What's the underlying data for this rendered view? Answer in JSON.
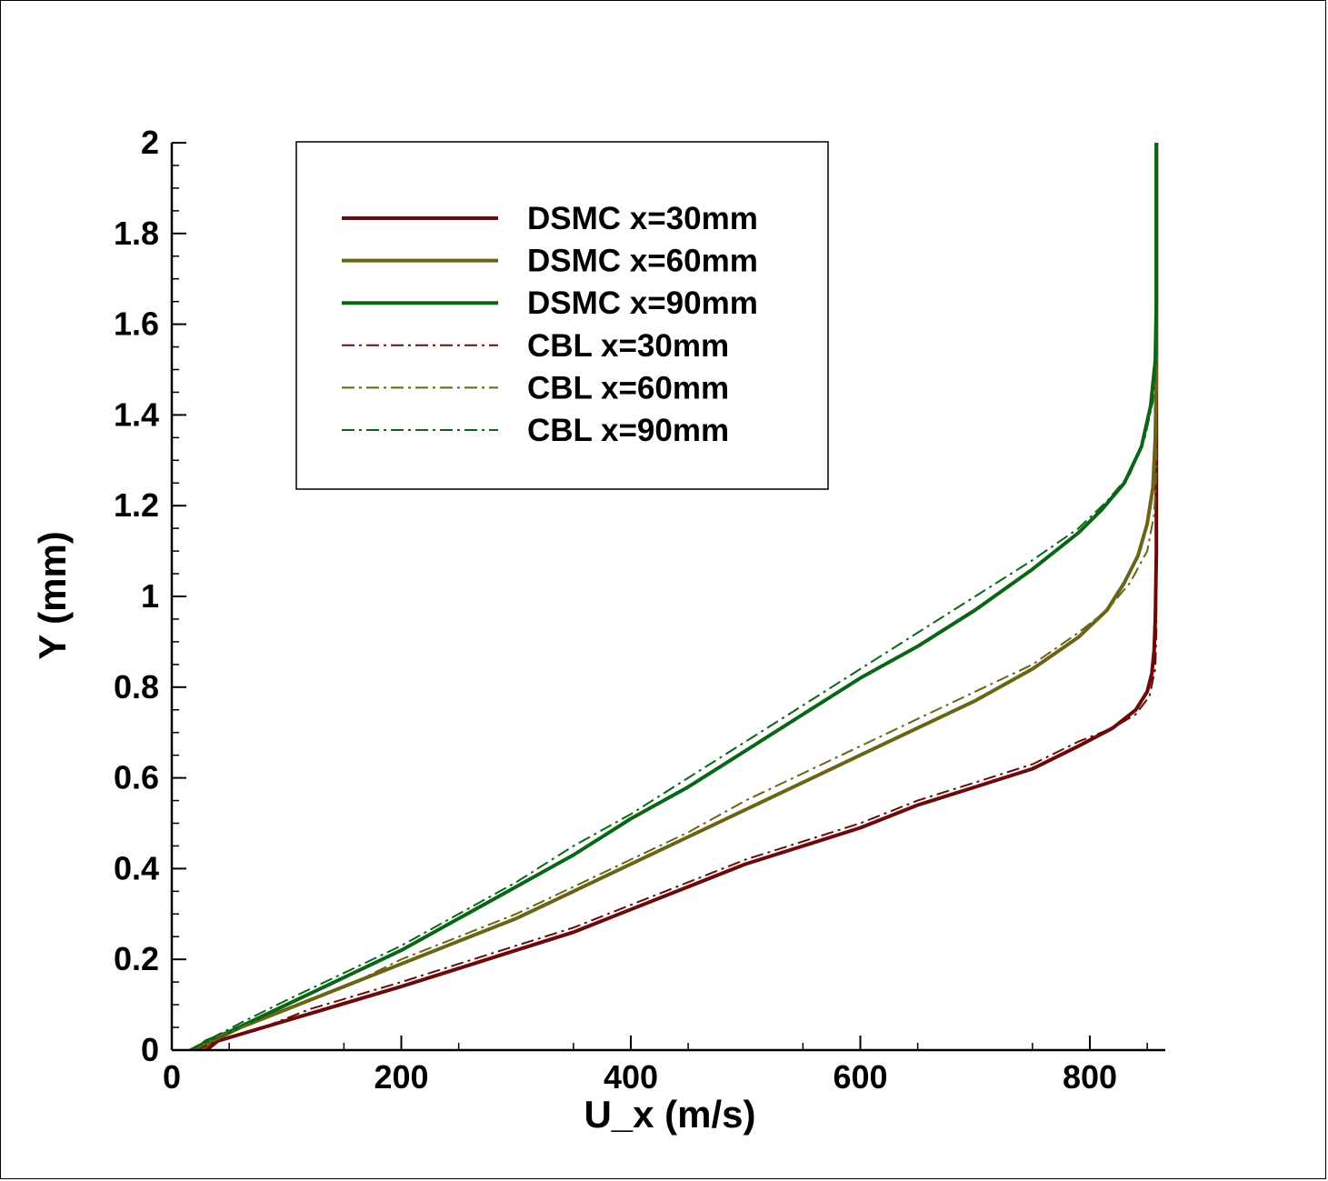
{
  "chart_data": {
    "type": "line",
    "xlabel": "U_x (m/s)",
    "ylabel": "Y (mm)",
    "xlim": [
      0,
      870
    ],
    "ylim": [
      0,
      2
    ],
    "xticks": [
      0,
      200,
      400,
      600,
      800
    ],
    "xtick_labels": [
      "0",
      "200",
      "400",
      "600",
      "800"
    ],
    "yticks": [
      0,
      0.2,
      0.4,
      0.6,
      0.8,
      1,
      1.2,
      1.4,
      1.6,
      1.8,
      2
    ],
    "ytick_labels": [
      "0",
      "0.2",
      "0.4",
      "0.6",
      "0.8",
      "1",
      "1.2",
      "1.4",
      "1.6",
      "1.8",
      "2"
    ],
    "grid": false,
    "legend_position": "top-left",
    "series": [
      {
        "name": "DSMC x=30mm",
        "style": "solid",
        "color": "#6b0a0a",
        "points": [
          [
            30,
            0
          ],
          [
            40,
            0.02
          ],
          [
            80,
            0.05
          ],
          [
            120,
            0.08
          ],
          [
            160,
            0.11
          ],
          [
            200,
            0.14
          ],
          [
            250,
            0.18
          ],
          [
            300,
            0.22
          ],
          [
            350,
            0.26
          ],
          [
            400,
            0.31
          ],
          [
            450,
            0.36
          ],
          [
            500,
            0.41
          ],
          [
            550,
            0.45
          ],
          [
            600,
            0.49
          ],
          [
            650,
            0.54
          ],
          [
            700,
            0.58
          ],
          [
            750,
            0.62
          ],
          [
            790,
            0.67
          ],
          [
            820,
            0.71
          ],
          [
            840,
            0.75
          ],
          [
            850,
            0.79
          ],
          [
            854,
            0.83
          ],
          [
            856,
            0.88
          ],
          [
            857,
            0.95
          ],
          [
            858,
            1.1
          ],
          [
            858,
            2
          ]
        ]
      },
      {
        "name": "DSMC x=60mm",
        "style": "solid",
        "color": "#6b6415",
        "points": [
          [
            25,
            0
          ],
          [
            35,
            0.02
          ],
          [
            60,
            0.05
          ],
          [
            100,
            0.09
          ],
          [
            150,
            0.14
          ],
          [
            200,
            0.19
          ],
          [
            250,
            0.24
          ],
          [
            300,
            0.29
          ],
          [
            350,
            0.35
          ],
          [
            400,
            0.41
          ],
          [
            450,
            0.47
          ],
          [
            500,
            0.53
          ],
          [
            550,
            0.59
          ],
          [
            600,
            0.65
          ],
          [
            650,
            0.71
          ],
          [
            700,
            0.77
          ],
          [
            750,
            0.84
          ],
          [
            790,
            0.91
          ],
          [
            815,
            0.97
          ],
          [
            830,
            1.03
          ],
          [
            842,
            1.09
          ],
          [
            850,
            1.16
          ],
          [
            855,
            1.24
          ],
          [
            857,
            1.35
          ],
          [
            858,
            1.5
          ],
          [
            858,
            2
          ]
        ]
      },
      {
        "name": "DSMC x=90mm",
        "style": "solid",
        "color": "#0a6616",
        "points": [
          [
            20,
            0
          ],
          [
            30,
            0.02
          ],
          [
            50,
            0.04
          ],
          [
            100,
            0.1
          ],
          [
            150,
            0.16
          ],
          [
            200,
            0.22
          ],
          [
            250,
            0.29
          ],
          [
            300,
            0.36
          ],
          [
            350,
            0.43
          ],
          [
            400,
            0.51
          ],
          [
            450,
            0.58
          ],
          [
            500,
            0.66
          ],
          [
            550,
            0.74
          ],
          [
            600,
            0.82
          ],
          [
            650,
            0.89
          ],
          [
            700,
            0.97
          ],
          [
            750,
            1.06
          ],
          [
            790,
            1.14
          ],
          [
            810,
            1.19
          ],
          [
            830,
            1.25
          ],
          [
            845,
            1.33
          ],
          [
            853,
            1.42
          ],
          [
            857,
            1.52
          ],
          [
            858,
            1.65
          ],
          [
            858,
            2
          ]
        ]
      },
      {
        "name": "CBL x=30mm",
        "style": "dashdot",
        "color": "#6b0a0a",
        "points": [
          [
            20,
            0
          ],
          [
            40,
            0.02
          ],
          [
            80,
            0.05
          ],
          [
            120,
            0.09
          ],
          [
            160,
            0.12
          ],
          [
            200,
            0.15
          ],
          [
            250,
            0.19
          ],
          [
            300,
            0.23
          ],
          [
            350,
            0.27
          ],
          [
            400,
            0.32
          ],
          [
            450,
            0.37
          ],
          [
            500,
            0.42
          ],
          [
            550,
            0.46
          ],
          [
            600,
            0.5
          ],
          [
            650,
            0.55
          ],
          [
            700,
            0.59
          ],
          [
            750,
            0.63
          ],
          [
            790,
            0.68
          ],
          [
            820,
            0.71
          ],
          [
            840,
            0.74
          ],
          [
            852,
            0.78
          ],
          [
            857,
            0.84
          ],
          [
            858,
            0.92
          ],
          [
            858,
            1.1
          ]
        ]
      },
      {
        "name": "CBL x=60mm",
        "style": "dashdot",
        "color": "#6b6415",
        "points": [
          [
            20,
            0
          ],
          [
            40,
            0.03
          ],
          [
            80,
            0.07
          ],
          [
            120,
            0.11
          ],
          [
            160,
            0.15
          ],
          [
            200,
            0.2
          ],
          [
            250,
            0.25
          ],
          [
            300,
            0.3
          ],
          [
            350,
            0.36
          ],
          [
            400,
            0.42
          ],
          [
            450,
            0.48
          ],
          [
            500,
            0.55
          ],
          [
            550,
            0.61
          ],
          [
            600,
            0.67
          ],
          [
            650,
            0.73
          ],
          [
            700,
            0.79
          ],
          [
            750,
            0.85
          ],
          [
            790,
            0.92
          ],
          [
            815,
            0.97
          ],
          [
            835,
            1.03
          ],
          [
            850,
            1.1
          ],
          [
            856,
            1.18
          ],
          [
            858,
            1.28
          ],
          [
            858,
            1.45
          ]
        ]
      },
      {
        "name": "CBL x=90mm",
        "style": "dashdot",
        "color": "#0a6616",
        "points": [
          [
            15,
            0
          ],
          [
            30,
            0.02
          ],
          [
            60,
            0.06
          ],
          [
            100,
            0.11
          ],
          [
            150,
            0.17
          ],
          [
            200,
            0.23
          ],
          [
            250,
            0.3
          ],
          [
            300,
            0.37
          ],
          [
            350,
            0.45
          ],
          [
            400,
            0.52
          ],
          [
            450,
            0.6
          ],
          [
            500,
            0.68
          ],
          [
            550,
            0.76
          ],
          [
            600,
            0.84
          ],
          [
            650,
            0.92
          ],
          [
            700,
            1
          ],
          [
            750,
            1.08
          ],
          [
            790,
            1.15
          ],
          [
            815,
            1.21
          ],
          [
            835,
            1.27
          ],
          [
            848,
            1.35
          ],
          [
            855,
            1.43
          ],
          [
            858,
            1.52
          ],
          [
            858,
            1.7
          ]
        ]
      }
    ]
  }
}
